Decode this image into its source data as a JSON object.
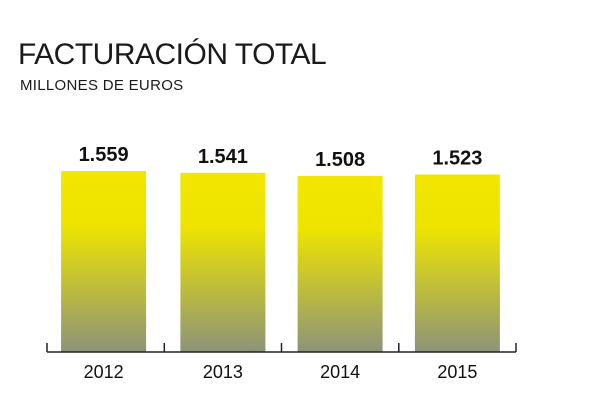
{
  "chart_data": {
    "type": "bar",
    "title": "FACTURACIÓN TOTAL",
    "subtitle": "MILLONES DE EUROS",
    "categories": [
      "2012",
      "2013",
      "2014",
      "2015"
    ],
    "values": [
      1559,
      1541,
      1508,
      1523
    ],
    "value_labels": [
      "1.559",
      "1.541",
      "1.508",
      "1.523"
    ],
    "xlabel": "",
    "ylabel": "",
    "grid": false,
    "legend": "none",
    "bar_gradient": {
      "top": "#f2e600",
      "bottom": "#8c9479"
    },
    "axis_color": "#222222"
  }
}
